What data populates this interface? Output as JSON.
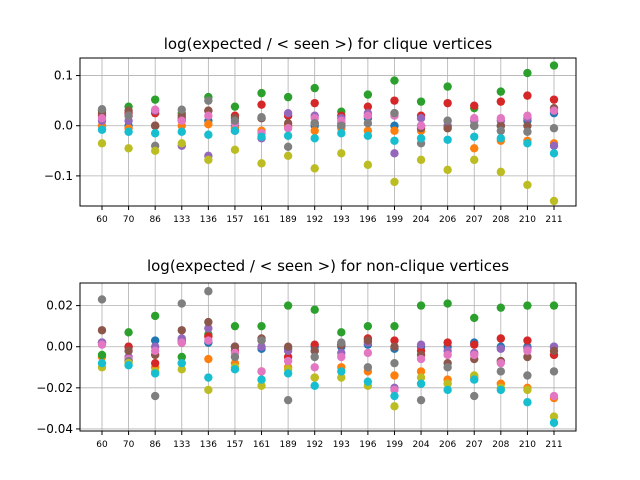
{
  "chart_data": [
    {
      "type": "scatter",
      "title": "log(expected / < seen >) for clique vertices",
      "xlabel": "",
      "ylabel": "",
      "categories": [
        "60",
        "70",
        "86",
        "133",
        "136",
        "157",
        "161",
        "189",
        "192",
        "193",
        "196",
        "199",
        "204",
        "206",
        "207",
        "208",
        "210",
        "211"
      ],
      "ylim": [
        -0.16,
        0.135
      ],
      "yticks": [
        -0.1,
        0.0,
        0.1
      ],
      "ytick_labels": [
        "−0.1",
        "0.0",
        "0.1"
      ],
      "grid": true,
      "series": [
        {
          "color": "#1f77b4",
          "values": [
            0.0,
            0.0,
            0.0,
            0.01,
            0.01,
            0.0,
            0.015,
            0.0,
            0.0,
            0.0,
            0.015,
            0.0,
            0.0,
            0.0,
            0.0,
            0.0,
            0.01,
            0.025
          ]
        },
        {
          "color": "#ff7f0e",
          "values": [
            0.0,
            -0.005,
            0.0,
            0.0,
            0.003,
            -0.005,
            -0.01,
            0.0,
            -0.01,
            -0.005,
            -0.01,
            -0.01,
            -0.01,
            -0.005,
            -0.045,
            -0.03,
            -0.03,
            -0.035
          ]
        },
        {
          "color": "#2ca02c",
          "values": [
            0.03,
            0.038,
            0.052,
            0.025,
            0.057,
            0.038,
            0.065,
            0.057,
            0.075,
            0.028,
            0.062,
            0.09,
            0.048,
            0.078,
            0.035,
            0.068,
            0.105,
            0.12
          ]
        },
        {
          "color": "#d62728",
          "values": [
            0.02,
            0.025,
            0.025,
            0.015,
            0.03,
            0.02,
            0.042,
            0.02,
            0.045,
            0.02,
            0.038,
            0.05,
            0.02,
            0.045,
            0.04,
            0.048,
            0.06,
            0.052
          ]
        },
        {
          "color": "#9467bd",
          "values": [
            0.01,
            0.01,
            0.03,
            -0.04,
            -0.06,
            -0.01,
            -0.025,
            0.025,
            0.02,
            0.015,
            0.025,
            -0.055,
            0.015,
            0.0,
            0.01,
            0.01,
            0.015,
            -0.04
          ]
        },
        {
          "color": "#8c564b",
          "values": [
            0.025,
            0.03,
            0.0,
            0.02,
            0.03,
            0.015,
            0.015,
            0.005,
            0.005,
            0.005,
            0.02,
            0.025,
            -0.005,
            -0.005,
            0.0,
            0.0,
            0.0,
            0.035
          ]
        },
        {
          "color": "#e377c2",
          "values": [
            0.015,
            0.02,
            0.032,
            0.01,
            0.02,
            0.005,
            -0.015,
            -0.005,
            0.015,
            0.01,
            0.02,
            0.02,
            0.0,
            0.01,
            0.015,
            0.015,
            0.02,
            0.03
          ]
        },
        {
          "color": "#7f7f7f",
          "values": [
            0.033,
            0.02,
            -0.04,
            0.032,
            0.05,
            0.01,
            0.017,
            -0.042,
            0.005,
            0.0,
            0.005,
            0.025,
            -0.035,
            0.01,
            0.0,
            -0.01,
            -0.012,
            -0.005
          ]
        },
        {
          "color": "#bcbd22",
          "values": [
            -0.035,
            -0.045,
            -0.05,
            -0.035,
            -0.068,
            -0.048,
            -0.075,
            -0.06,
            -0.085,
            -0.055,
            -0.078,
            -0.112,
            -0.068,
            -0.088,
            -0.068,
            -0.092,
            -0.118,
            -0.15
          ]
        },
        {
          "color": "#17becf",
          "values": [
            -0.008,
            -0.012,
            -0.015,
            -0.012,
            -0.018,
            -0.01,
            -0.022,
            -0.02,
            -0.025,
            -0.015,
            -0.02,
            -0.03,
            -0.025,
            -0.028,
            -0.022,
            -0.025,
            -0.035,
            -0.055
          ]
        }
      ]
    },
    {
      "type": "scatter",
      "title": "log(expected / < seen >) for non-clique vertices",
      "xlabel": "",
      "ylabel": "",
      "categories": [
        "60",
        "70",
        "86",
        "133",
        "136",
        "157",
        "161",
        "189",
        "192",
        "193",
        "196",
        "199",
        "204",
        "206",
        "207",
        "208",
        "210",
        "211"
      ],
      "ylim": [
        -0.041,
        0.031
      ],
      "yticks": [
        -0.04,
        -0.02,
        0.0,
        0.02
      ],
      "ytick_labels": [
        "−0.04",
        "−0.02",
        "0.00",
        "0.02"
      ],
      "grid": true,
      "series": [
        {
          "color": "#1f77b4",
          "values": [
            0.002,
            0.0,
            0.003,
            0.003,
            0.002,
            0.0,
            -0.001,
            -0.001,
            0.0,
            0.0,
            0.001,
            -0.001,
            0.0,
            0.0,
            0.002,
            0.0,
            0.0,
            0.0
          ]
        },
        {
          "color": "#ff7f0e",
          "values": [
            -0.005,
            -0.007,
            -0.01,
            -0.008,
            -0.006,
            -0.008,
            -0.012,
            -0.01,
            -0.015,
            -0.01,
            -0.012,
            -0.014,
            -0.012,
            -0.016,
            -0.015,
            -0.018,
            -0.02,
            -0.025
          ]
        },
        {
          "color": "#2ca02c",
          "values": [
            -0.004,
            0.007,
            0.015,
            -0.005,
            0.006,
            0.01,
            0.01,
            0.02,
            0.018,
            0.007,
            0.01,
            0.01,
            0.02,
            0.021,
            0.014,
            0.019,
            0.02,
            0.02
          ]
        },
        {
          "color": "#d62728",
          "values": [
            0.002,
            0.0,
            -0.008,
            0.002,
            0.005,
            -0.002,
            0.003,
            -0.005,
            0.001,
            0.001,
            0.004,
            0.003,
            -0.002,
            0.002,
            0.001,
            0.004,
            0.003,
            -0.004
          ]
        },
        {
          "color": "#9467bd",
          "values": [
            0.002,
            -0.005,
            0.0,
            0.004,
            0.009,
            0.0,
            0.0,
            -0.002,
            -0.002,
            -0.003,
            0.002,
            -0.02,
            0.001,
            -0.002,
            -0.003,
            -0.001,
            -0.001,
            0.0
          ]
        },
        {
          "color": "#8c564b",
          "values": [
            0.008,
            -0.002,
            -0.004,
            0.008,
            0.012,
            0.0,
            0.004,
            0.0,
            -0.002,
            0.001,
            0.003,
            0.0,
            -0.004,
            -0.008,
            -0.006,
            -0.007,
            -0.005,
            -0.002
          ]
        },
        {
          "color": "#e377c2",
          "values": [
            0.001,
            -0.006,
            -0.002,
            0.002,
            0.003,
            -0.003,
            -0.012,
            -0.007,
            -0.01,
            -0.005,
            -0.003,
            -0.021,
            -0.006,
            -0.004,
            -0.004,
            -0.008,
            -0.002,
            -0.024
          ]
        },
        {
          "color": "#7f7f7f",
          "values": [
            0.023,
            -0.007,
            -0.024,
            0.021,
            0.027,
            -0.005,
            0.003,
            -0.026,
            -0.005,
            0.002,
            -0.01,
            -0.008,
            -0.026,
            -0.01,
            -0.024,
            -0.012,
            -0.014,
            -0.012
          ]
        },
        {
          "color": "#bcbd22",
          "values": [
            -0.01,
            -0.008,
            -0.012,
            -0.011,
            -0.021,
            -0.01,
            -0.019,
            -0.011,
            -0.015,
            -0.015,
            -0.019,
            -0.029,
            -0.015,
            -0.018,
            -0.014,
            -0.02,
            -0.021,
            -0.034
          ]
        },
        {
          "color": "#17becf",
          "values": [
            -0.008,
            -0.009,
            -0.013,
            -0.008,
            -0.015,
            -0.011,
            -0.016,
            -0.013,
            -0.019,
            -0.012,
            -0.017,
            -0.024,
            -0.018,
            -0.021,
            -0.016,
            -0.021,
            -0.027,
            -0.037
          ]
        }
      ]
    }
  ]
}
